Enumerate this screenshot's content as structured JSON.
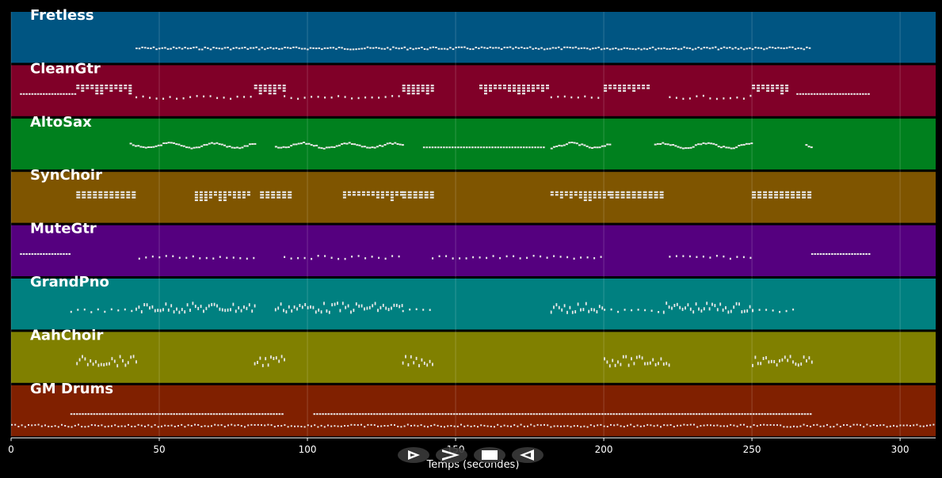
{
  "chart_data": {
    "type": "piano-roll",
    "xlabel": "Temps (secondes)",
    "xlim": [
      0,
      312
    ],
    "xticks": [
      0,
      50,
      100,
      150,
      200,
      250,
      300
    ],
    "grid": true,
    "tracks": [
      {
        "name": "Fretless",
        "color": "#005582",
        "segments": [
          [
            42,
            270,
            "arp"
          ]
        ]
      },
      {
        "name": "CleanGtr",
        "color": "#800028",
        "segments": [
          [
            3,
            22,
            "line"
          ],
          [
            22,
            40,
            "chord"
          ],
          [
            42,
            82,
            "sparse"
          ],
          [
            82,
            92,
            "chord"
          ],
          [
            92,
            132,
            "sparse"
          ],
          [
            132,
            142,
            "chord"
          ],
          [
            158,
            182,
            "chord"
          ],
          [
            182,
            200,
            "sparse"
          ],
          [
            200,
            215,
            "chord"
          ],
          [
            222,
            250,
            "sparse"
          ],
          [
            250,
            262,
            "chord"
          ],
          [
            265,
            290,
            "line"
          ]
        ]
      },
      {
        "name": "AltoSax",
        "color": "#00801e",
        "segments": [
          [
            40,
            82,
            "melody"
          ],
          [
            89,
            132,
            "melody"
          ],
          [
            139,
            180,
            "line"
          ],
          [
            182,
            202,
            "melody"
          ],
          [
            217,
            250,
            "melody"
          ],
          [
            268,
            270,
            "melody"
          ]
        ]
      },
      {
        "name": "SynChoir",
        "color": "#7f5500",
        "segments": [
          [
            22,
            42,
            "block"
          ],
          [
            62,
            80,
            "chord"
          ],
          [
            84,
            94,
            "block"
          ],
          [
            112,
            132,
            "chord"
          ],
          [
            132,
            142,
            "block"
          ],
          [
            182,
            202,
            "chord"
          ],
          [
            202,
            220,
            "block"
          ],
          [
            250,
            270,
            "block"
          ]
        ]
      },
      {
        "name": "MuteGtr",
        "color": "#55007f",
        "segments": [
          [
            3,
            20,
            "line"
          ],
          [
            43,
            82,
            "sparse"
          ],
          [
            92,
            132,
            "sparse"
          ],
          [
            142,
            200,
            "sparse"
          ],
          [
            222,
            250,
            "sparse"
          ],
          [
            270,
            290,
            "line"
          ]
        ]
      },
      {
        "name": "GrandPno",
        "color": "#008080",
        "segments": [
          [
            20,
            42,
            "sparse"
          ],
          [
            42,
            82,
            "dense"
          ],
          [
            89,
            132,
            "dense"
          ],
          [
            132,
            142,
            "sparse"
          ],
          [
            182,
            200,
            "dense"
          ],
          [
            200,
            220,
            "sparse"
          ],
          [
            220,
            250,
            "dense"
          ],
          [
            250,
            265,
            "sparse"
          ]
        ]
      },
      {
        "name": "AahChoir",
        "color": "#808000",
        "segments": [
          [
            22,
            42,
            "dense"
          ],
          [
            82,
            92,
            "dense"
          ],
          [
            132,
            142,
            "dense"
          ],
          [
            200,
            222,
            "dense"
          ],
          [
            250,
            270,
            "dense"
          ]
        ]
      },
      {
        "name": "GM Drums",
        "color": "#802000",
        "segments": [
          [
            0,
            312,
            "drums"
          ],
          [
            20,
            92,
            "line"
          ],
          [
            102,
            270,
            "line"
          ]
        ]
      }
    ]
  },
  "controls": [
    {
      "icon": "play-icon"
    },
    {
      "icon": "fast-forward-icon"
    },
    {
      "icon": "stop-icon"
    },
    {
      "icon": "rewind-icon"
    }
  ]
}
